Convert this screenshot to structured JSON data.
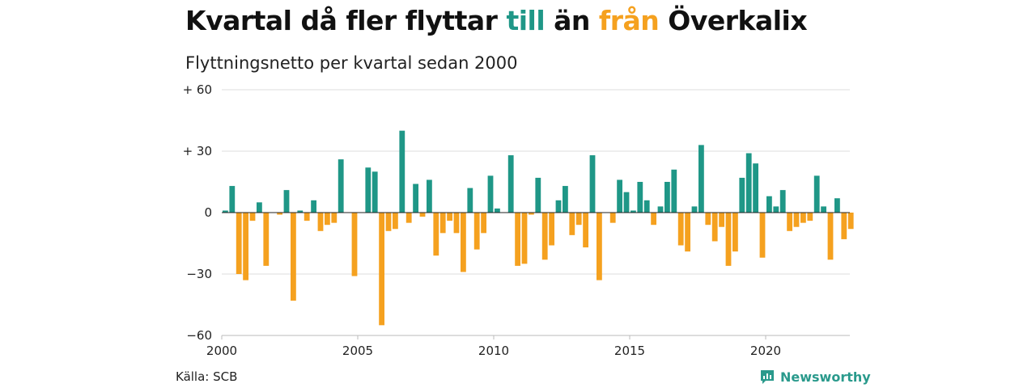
{
  "title_parts": {
    "part1": "Kvartal då fler flyttar ",
    "part2": "till",
    "part3": " än ",
    "part4": "från",
    "part5": " Överkalix"
  },
  "subtitle": "Flyttningsnetto per kvartal sedan 2000",
  "source": "Källa: SCB",
  "brand": "Newsworthy",
  "colors": {
    "positive": "#1f9787",
    "negative": "#f5a11f",
    "grid": "#dddddd",
    "zero": "#222222"
  },
  "chart_data": {
    "type": "bar",
    "x_start": "2000-Q1",
    "quarters_per_year": 4,
    "x_ticks": [
      "2000",
      "2005",
      "2010",
      "2015",
      "2020"
    ],
    "y_ticks": [
      "+ 60",
      "+ 30",
      "0",
      "−30",
      "−60"
    ],
    "y_tick_values": [
      60,
      30,
      0,
      -30,
      -60
    ],
    "ylim": [
      -60,
      60
    ],
    "values": [
      1,
      13,
      -30,
      -33,
      -4,
      5,
      -26,
      0,
      -1,
      11,
      -43,
      1,
      -4,
      6,
      -9,
      -6,
      -5,
      26,
      0,
      -31,
      0,
      22,
      20,
      -55,
      -9,
      -8,
      40,
      -5,
      14,
      -2,
      16,
      -21,
      -10,
      -4,
      -10,
      -29,
      12,
      -18,
      -10,
      18,
      2,
      0,
      28,
      -26,
      -25,
      -1,
      17,
      -23,
      -16,
      6,
      13,
      -11,
      -6,
      -17,
      28,
      -33,
      0,
      -5,
      16,
      10,
      1,
      15,
      6,
      -6,
      3,
      15,
      21,
      -16,
      -19,
      3,
      33,
      -6,
      -14,
      -7,
      -26,
      -19,
      17,
      29,
      24,
      -22,
      8,
      3,
      11,
      -9,
      -7,
      -5,
      -4,
      18,
      3,
      -23,
      7,
      -13,
      -8
    ]
  }
}
